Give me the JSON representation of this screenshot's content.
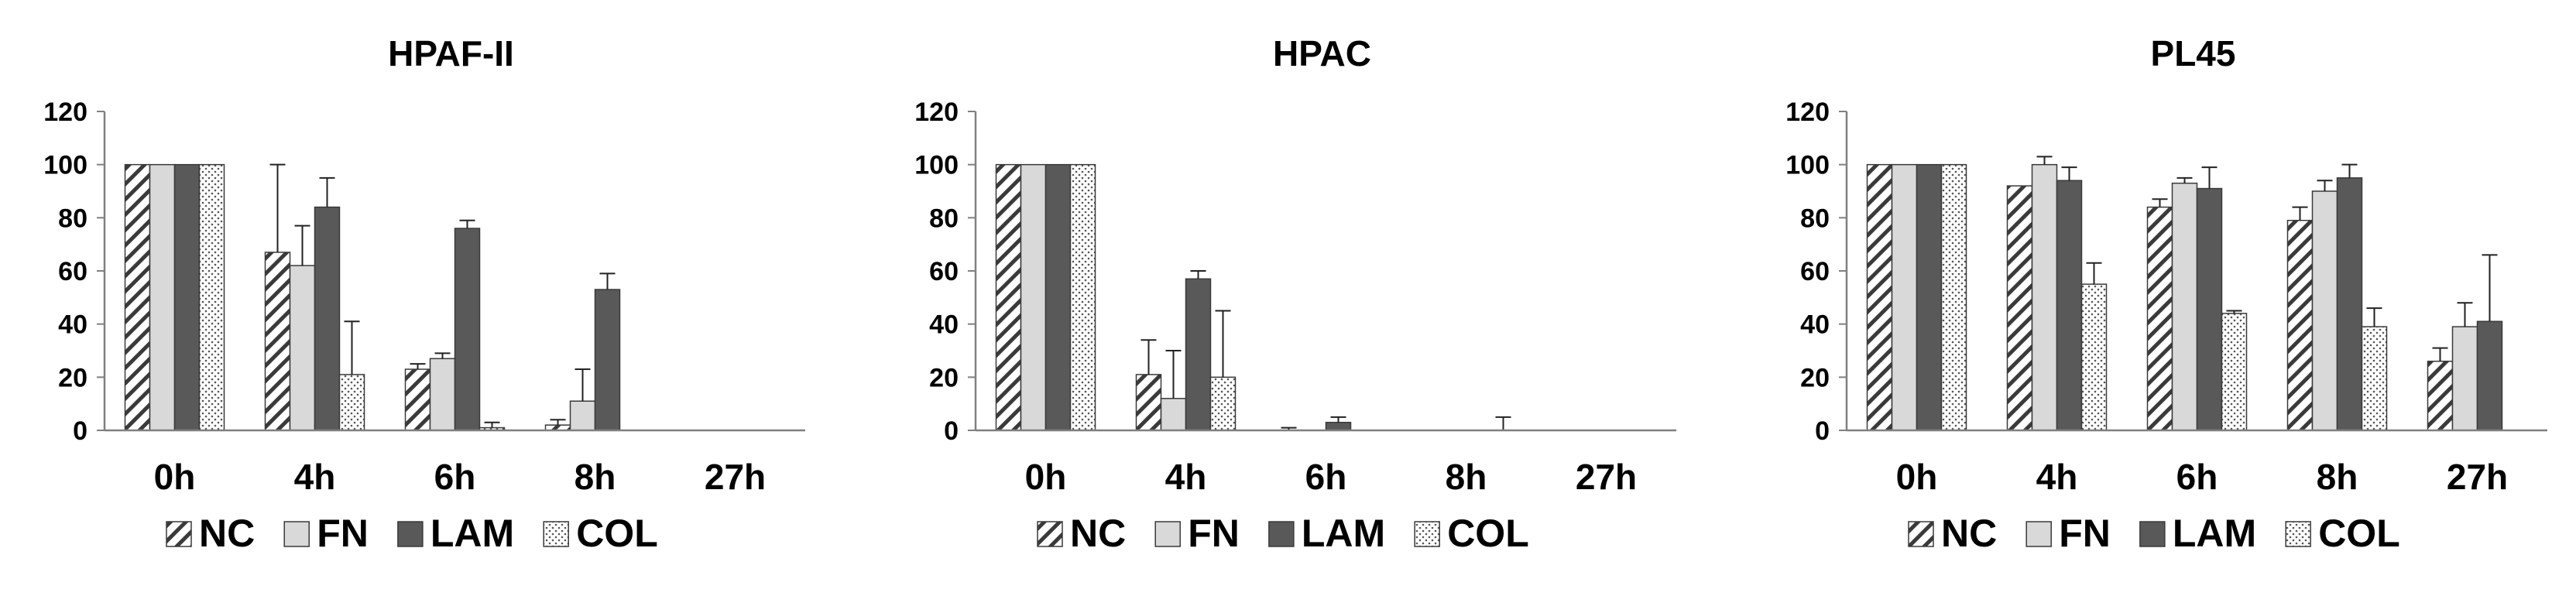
{
  "chart_data": [
    {
      "type": "bar",
      "title": "HPAF-II",
      "categories": [
        "0h",
        "4h",
        "6h",
        "8h",
        "27h"
      ],
      "ylim": [
        0,
        120
      ],
      "yticks": [
        0,
        20,
        40,
        60,
        80,
        100,
        120
      ],
      "grid": false,
      "legend_position": "bottom",
      "series": [
        {
          "name": "NC",
          "values": [
            100,
            67,
            23,
            2,
            0
          ],
          "errors": [
            0,
            33,
            2,
            2,
            0
          ]
        },
        {
          "name": "FN",
          "values": [
            100,
            62,
            27,
            11,
            0
          ],
          "errors": [
            0,
            15,
            2,
            12,
            0
          ]
        },
        {
          "name": "LAM",
          "values": [
            100,
            84,
            76,
            53,
            0
          ],
          "errors": [
            0,
            11,
            3,
            6,
            0
          ]
        },
        {
          "name": "COL",
          "values": [
            100,
            21,
            1,
            0,
            0
          ],
          "errors": [
            0,
            20,
            2,
            0,
            0
          ]
        }
      ]
    },
    {
      "type": "bar",
      "title": "HPAC",
      "categories": [
        "0h",
        "4h",
        "6h",
        "8h",
        "27h"
      ],
      "ylim": [
        0,
        120
      ],
      "yticks": [
        0,
        20,
        40,
        60,
        80,
        100,
        120
      ],
      "grid": false,
      "legend_position": "bottom",
      "series": [
        {
          "name": "NC",
          "values": [
            100,
            21,
            0,
            0,
            0
          ],
          "errors": [
            0,
            13,
            1,
            0,
            0
          ]
        },
        {
          "name": "FN",
          "values": [
            100,
            12,
            0,
            0,
            0
          ],
          "errors": [
            0,
            18,
            0,
            0,
            0
          ]
        },
        {
          "name": "LAM",
          "values": [
            100,
            57,
            3,
            0,
            0
          ],
          "errors": [
            0,
            3,
            2,
            0,
            0
          ]
        },
        {
          "name": "COL",
          "values": [
            100,
            20,
            0,
            0,
            0
          ],
          "errors": [
            0,
            25,
            0,
            5,
            0
          ]
        }
      ]
    },
    {
      "type": "bar",
      "title": "PL45",
      "categories": [
        "0h",
        "4h",
        "6h",
        "8h",
        "27h"
      ],
      "ylim": [
        0,
        120
      ],
      "yticks": [
        0,
        20,
        40,
        60,
        80,
        100,
        120
      ],
      "grid": false,
      "legend_position": "bottom",
      "series": [
        {
          "name": "NC",
          "values": [
            100,
            92,
            84,
            79,
            26
          ],
          "errors": [
            0,
            0,
            3,
            5,
            5
          ]
        },
        {
          "name": "FN",
          "values": [
            100,
            100,
            93,
            90,
            39
          ],
          "errors": [
            0,
            3,
            2,
            4,
            9
          ]
        },
        {
          "name": "LAM",
          "values": [
            100,
            94,
            91,
            95,
            41
          ],
          "errors": [
            0,
            5,
            8,
            5,
            25
          ]
        },
        {
          "name": "COL",
          "values": [
            100,
            55,
            44,
            39,
            0
          ],
          "errors": [
            0,
            8,
            1,
            7,
            0
          ]
        }
      ]
    }
  ]
}
